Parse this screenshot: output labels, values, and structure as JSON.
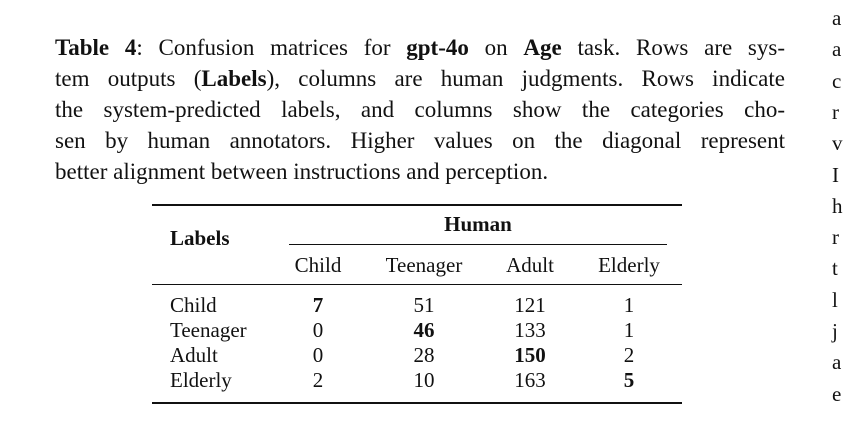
{
  "caption": {
    "lines": [
      [
        {
          "text": "Table 4",
          "bold": true
        },
        {
          "text": ": Confusion matrices for ",
          "bold": false
        },
        {
          "text": "gpt-4o",
          "bold": true
        },
        {
          "text": " on ",
          "bold": false
        },
        {
          "text": "Age",
          "bold": true
        },
        {
          "text": " task. Rows are sys-",
          "bold": false
        }
      ],
      [
        {
          "text": "tem outputs (",
          "bold": false
        },
        {
          "text": "Labels",
          "bold": true
        },
        {
          "text": "), columns are human judgments. Rows indicate",
          "bold": false
        }
      ],
      [
        {
          "text": "the system-predicted labels, and columns show the categories cho-",
          "bold": false
        }
      ],
      [
        {
          "text": "sen by human annotators.  Higher values on the diagonal represent",
          "bold": false
        }
      ],
      [
        {
          "text": "better alignment between instructions and perception.",
          "bold": false
        }
      ]
    ]
  },
  "table": {
    "row_header": "Labels",
    "column_group": "Human",
    "columns": [
      "Child",
      "Teenager",
      "Adult",
      "Elderly"
    ],
    "bold_diagonal": true,
    "rows": [
      {
        "label": "Child",
        "values": [
          7,
          51,
          121,
          1
        ]
      },
      {
        "label": "Teenager",
        "values": [
          0,
          46,
          133,
          1
        ]
      },
      {
        "label": "Adult",
        "values": [
          0,
          28,
          150,
          2
        ]
      },
      {
        "label": "Elderly",
        "values": [
          2,
          10,
          163,
          5
        ]
      }
    ]
  },
  "side_text": [
    "a",
    "a",
    "c",
    "r",
    "v",
    "I",
    "h",
    "r",
    "t",
    "l",
    "j",
    "a",
    "e"
  ]
}
